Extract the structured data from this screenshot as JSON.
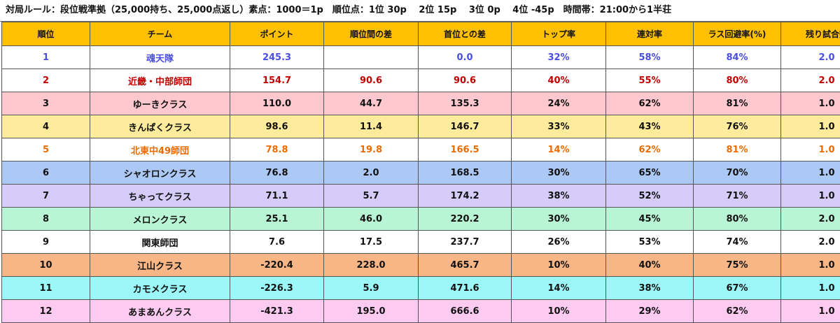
{
  "rule_text": "対局ルール：段位戦準拠（25,000持ち、25,000点返し）素点：1000＝1p　順位点：1位 30p　 2位 15p　 3位 0p　 4位 -45p　時間帯：21:00から1半荘",
  "headers": [
    "順位",
    "チーム",
    "ポイント",
    "順位間の差",
    "首位との差",
    "トップ率",
    "連対率",
    "ラス回避率(%)",
    "残り試合数"
  ],
  "colors": {
    "header_bg": "#fec000",
    "row_white": "#ffffff",
    "row_pink": "#ffc7ce",
    "row_yellow": "#ffeb9c",
    "row_blue": "#acc8f4",
    "row_lavender": "#d5ccf9",
    "row_mint": "#b9f5d4",
    "row_peach": "#f8b586",
    "row_cyan": "#9cf8f8",
    "row_pink_light": "#fdcbf1",
    "text_blue": "#4a4ee0",
    "text_red": "#c00000",
    "text_orange": "#ec6b00"
  },
  "rows": [
    {
      "rank": "1",
      "team": "魂天隊",
      "points": "245.3",
      "rank_diff": "",
      "leader_diff": "0.0",
      "top_rate": "32%",
      "rentai_rate": "58%",
      "last_avoid_rate": "84%",
      "remaining": "2.0",
      "bg": "row_white",
      "text_color": "blue"
    },
    {
      "rank": "2",
      "team": "近畿・中部師団",
      "points": "154.7",
      "rank_diff": "90.6",
      "leader_diff": "90.6",
      "top_rate": "40%",
      "rentai_rate": "55%",
      "last_avoid_rate": "80%",
      "remaining": "2.0",
      "bg": "row_white",
      "text_color": "red"
    },
    {
      "rank": "3",
      "team": "ゆーきクラス",
      "points": "110.0",
      "rank_diff": "44.7",
      "leader_diff": "135.3",
      "top_rate": "24%",
      "rentai_rate": "62%",
      "last_avoid_rate": "81%",
      "remaining": "1.0",
      "bg": "row_pink",
      "text_color": "black"
    },
    {
      "rank": "4",
      "team": "きんぱくクラス",
      "points": "98.6",
      "rank_diff": "11.4",
      "leader_diff": "146.7",
      "top_rate": "33%",
      "rentai_rate": "43%",
      "last_avoid_rate": "76%",
      "remaining": "1.0",
      "bg": "row_yellow",
      "text_color": "black"
    },
    {
      "rank": "5",
      "team": "北東中49師団",
      "points": "78.8",
      "rank_diff": "19.8",
      "leader_diff": "166.5",
      "top_rate": "14%",
      "rentai_rate": "62%",
      "last_avoid_rate": "81%",
      "remaining": "1.0",
      "bg": "row_white",
      "text_color": "orange"
    },
    {
      "rank": "6",
      "team": "シャオロンクラス",
      "points": "76.8",
      "rank_diff": "2.0",
      "leader_diff": "168.5",
      "top_rate": "30%",
      "rentai_rate": "65%",
      "last_avoid_rate": "70%",
      "remaining": "1.0",
      "bg": "row_blue",
      "text_color": "black"
    },
    {
      "rank": "7",
      "team": "ちゃってクラス",
      "points": "71.1",
      "rank_diff": "5.7",
      "leader_diff": "174.2",
      "top_rate": "38%",
      "rentai_rate": "52%",
      "last_avoid_rate": "71%",
      "remaining": "1.0",
      "bg": "row_lavender",
      "text_color": "black"
    },
    {
      "rank": "8",
      "team": "メロンクラス",
      "points": "25.1",
      "rank_diff": "46.0",
      "leader_diff": "220.2",
      "top_rate": "30%",
      "rentai_rate": "45%",
      "last_avoid_rate": "80%",
      "remaining": "2.0",
      "bg": "row_mint",
      "text_color": "black"
    },
    {
      "rank": "9",
      "team": "関東師団",
      "points": "7.6",
      "rank_diff": "17.5",
      "leader_diff": "237.7",
      "top_rate": "26%",
      "rentai_rate": "53%",
      "last_avoid_rate": "74%",
      "remaining": "2.0",
      "bg": "row_white",
      "text_color": "black"
    },
    {
      "rank": "10",
      "team": "江山クラス",
      "points": "-220.4",
      "rank_diff": "228.0",
      "leader_diff": "465.7",
      "top_rate": "10%",
      "rentai_rate": "40%",
      "last_avoid_rate": "75%",
      "remaining": "1.0",
      "bg": "row_peach",
      "text_color": "black"
    },
    {
      "rank": "11",
      "team": "カモメクラス",
      "points": "-226.3",
      "rank_diff": "5.9",
      "leader_diff": "471.6",
      "top_rate": "14%",
      "rentai_rate": "38%",
      "last_avoid_rate": "67%",
      "remaining": "1.0",
      "bg": "row_cyan",
      "text_color": "black"
    },
    {
      "rank": "12",
      "team": "あまあんクラス",
      "points": "-421.3",
      "rank_diff": "195.0",
      "leader_diff": "666.6",
      "top_rate": "10%",
      "rentai_rate": "29%",
      "last_avoid_rate": "62%",
      "remaining": "1.0",
      "bg": "row_pink_light",
      "text_color": "black"
    }
  ]
}
